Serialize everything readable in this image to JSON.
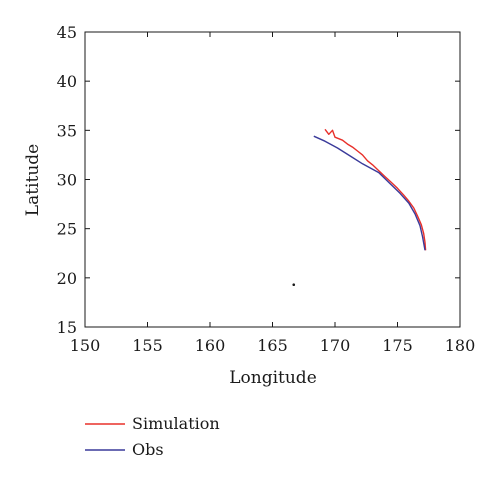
{
  "chart_data": {
    "type": "line",
    "title": "",
    "xlabel": "Longitude",
    "ylabel": "Latitude",
    "xlim": [
      150,
      180
    ],
    "ylim": [
      15,
      45
    ],
    "xticks": [
      "150",
      "155",
      "160",
      "165",
      "170",
      "175",
      "180"
    ],
    "yticks": [
      "15",
      "20",
      "25",
      "30",
      "35",
      "40",
      "45"
    ],
    "grid": false,
    "legend_position": "below",
    "series": [
      {
        "name": "Simulation",
        "color": "#e8302a",
        "points": [
          [
            169.2,
            35.1
          ],
          [
            169.5,
            34.6
          ],
          [
            169.8,
            35.0
          ],
          [
            170.0,
            34.3
          ],
          [
            170.6,
            34.0
          ],
          [
            171.0,
            33.6
          ],
          [
            171.4,
            33.3
          ],
          [
            171.8,
            32.9
          ],
          [
            172.2,
            32.5
          ],
          [
            172.6,
            31.9
          ],
          [
            173.0,
            31.5
          ],
          [
            173.5,
            30.9
          ],
          [
            174.0,
            30.3
          ],
          [
            174.5,
            29.7
          ],
          [
            175.0,
            29.1
          ],
          [
            175.5,
            28.4
          ],
          [
            175.9,
            27.8
          ],
          [
            176.3,
            27.1
          ],
          [
            176.6,
            26.3
          ],
          [
            176.9,
            25.4
          ],
          [
            177.1,
            24.5
          ],
          [
            177.2,
            23.6
          ],
          [
            177.25,
            22.8
          ]
        ]
      },
      {
        "name": "Obs",
        "color": "#3a3a9a",
        "points": [
          [
            168.3,
            34.4
          ],
          [
            169.2,
            33.9
          ],
          [
            170.2,
            33.2
          ],
          [
            171.2,
            32.4
          ],
          [
            172.2,
            31.6
          ],
          [
            173.5,
            30.7
          ],
          [
            174.3,
            29.7
          ],
          [
            175.2,
            28.6
          ],
          [
            175.9,
            27.6
          ],
          [
            176.4,
            26.5
          ],
          [
            176.8,
            25.3
          ],
          [
            177.0,
            24.2
          ],
          [
            177.2,
            22.8
          ]
        ]
      }
    ],
    "markers": [
      {
        "x": 166.7,
        "y": 19.3
      }
    ]
  }
}
